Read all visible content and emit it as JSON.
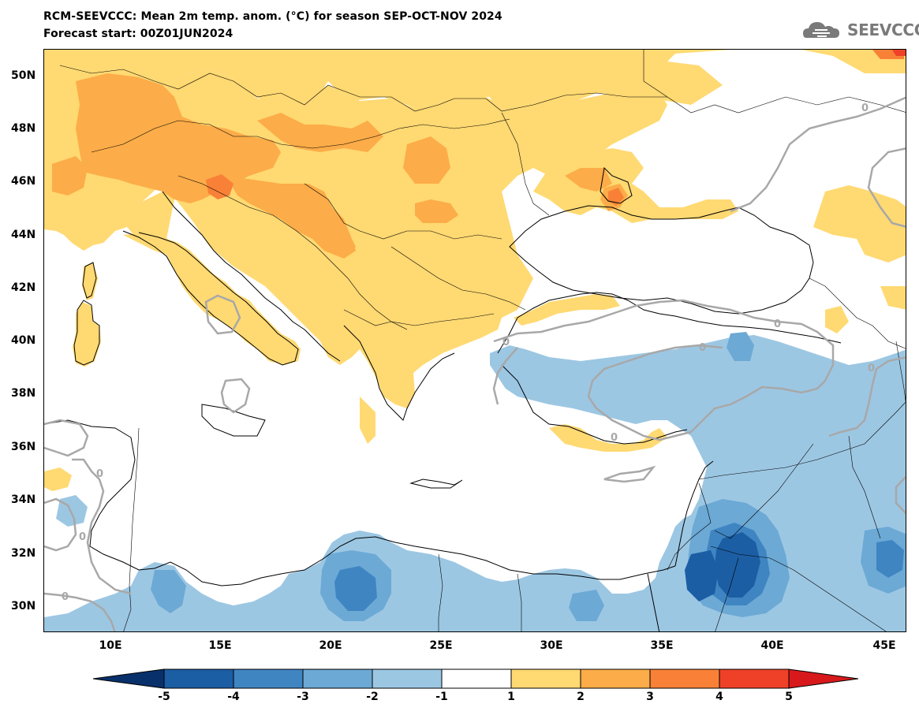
{
  "header": {
    "title_line1": "RCM-SEEVCCC: Mean 2m temp. anom. (°C) for season SEP-OCT-NOV 2024",
    "title_line2": "Forecast start: 00Z01JUN2024",
    "logo_text": "SEEVCCC"
  },
  "axes": {
    "y_labels": [
      "50N",
      "48N",
      "46N",
      "44N",
      "42N",
      "40N",
      "38N",
      "36N",
      "34N",
      "32N",
      "30N"
    ],
    "x_labels": [
      "10E",
      "15E",
      "20E",
      "25E",
      "30E",
      "35E",
      "40E",
      "45E"
    ]
  },
  "map": {
    "contour_label": "0",
    "warm_colors": {
      "1_2": "#ffd972",
      "2_3": "#fcac48",
      "3_4": "#f88137",
      "4_5": "#ee4128"
    },
    "cool_colors": {
      "m1_m2": "#9cc7e3",
      "m2_m3": "#6ca9d5",
      "m3_m4": "#3f85c2",
      "m4_m5": "#1c5ea4"
    },
    "coast_color": "#000000",
    "zero_contour_color": "#a8a8a8"
  },
  "colorbar": {
    "labels": [
      "-5",
      "-4",
      "-3",
      "-2",
      "-1",
      "1",
      "2",
      "3",
      "4",
      "5"
    ],
    "colors": [
      "#08306b",
      "#1c5ea4",
      "#3f85c2",
      "#6ca9d5",
      "#9cc7e3",
      "#ffffff",
      "#ffd972",
      "#fcac48",
      "#f88137",
      "#ee4128",
      "#d7191c"
    ]
  }
}
